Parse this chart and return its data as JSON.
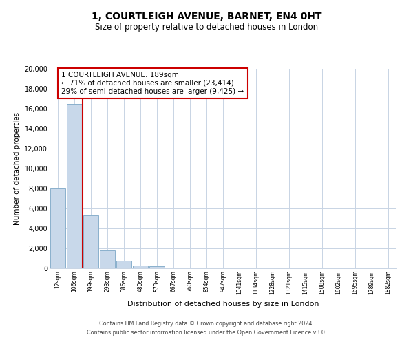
{
  "title": "1, COURTLEIGH AVENUE, BARNET, EN4 0HT",
  "subtitle": "Size of property relative to detached houses in London",
  "xlabel": "Distribution of detached houses by size in London",
  "ylabel": "Number of detached properties",
  "bar_labels": [
    "12sqm",
    "106sqm",
    "199sqm",
    "293sqm",
    "386sqm",
    "480sqm",
    "573sqm",
    "667sqm",
    "760sqm",
    "854sqm",
    "947sqm",
    "1041sqm",
    "1134sqm",
    "1228sqm",
    "1321sqm",
    "1415sqm",
    "1508sqm",
    "1602sqm",
    "1695sqm",
    "1789sqm",
    "1882sqm"
  ],
  "bar_values": [
    8100,
    16500,
    5300,
    1800,
    750,
    300,
    200,
    0,
    0,
    0,
    0,
    0,
    0,
    0,
    0,
    0,
    0,
    0,
    0,
    0,
    0
  ],
  "bar_color": "#c8d8ea",
  "bar_edge_color": "#8ab0cc",
  "vline_color": "#cc0000",
  "annotation_text_line1": "1 COURTLEIGH AVENUE: 189sqm",
  "annotation_text_line2": "← 71% of detached houses are smaller (23,414)",
  "annotation_text_line3": "29% of semi-detached houses are larger (9,425) →",
  "ylim": [
    0,
    20000
  ],
  "yticks": [
    0,
    2000,
    4000,
    6000,
    8000,
    10000,
    12000,
    14000,
    16000,
    18000,
    20000
  ],
  "background_color": "#ffffff",
  "grid_color": "#c8d4e4",
  "footer_line1": "Contains HM Land Registry data © Crown copyright and database right 2024.",
  "footer_line2": "Contains public sector information licensed under the Open Government Licence v3.0."
}
